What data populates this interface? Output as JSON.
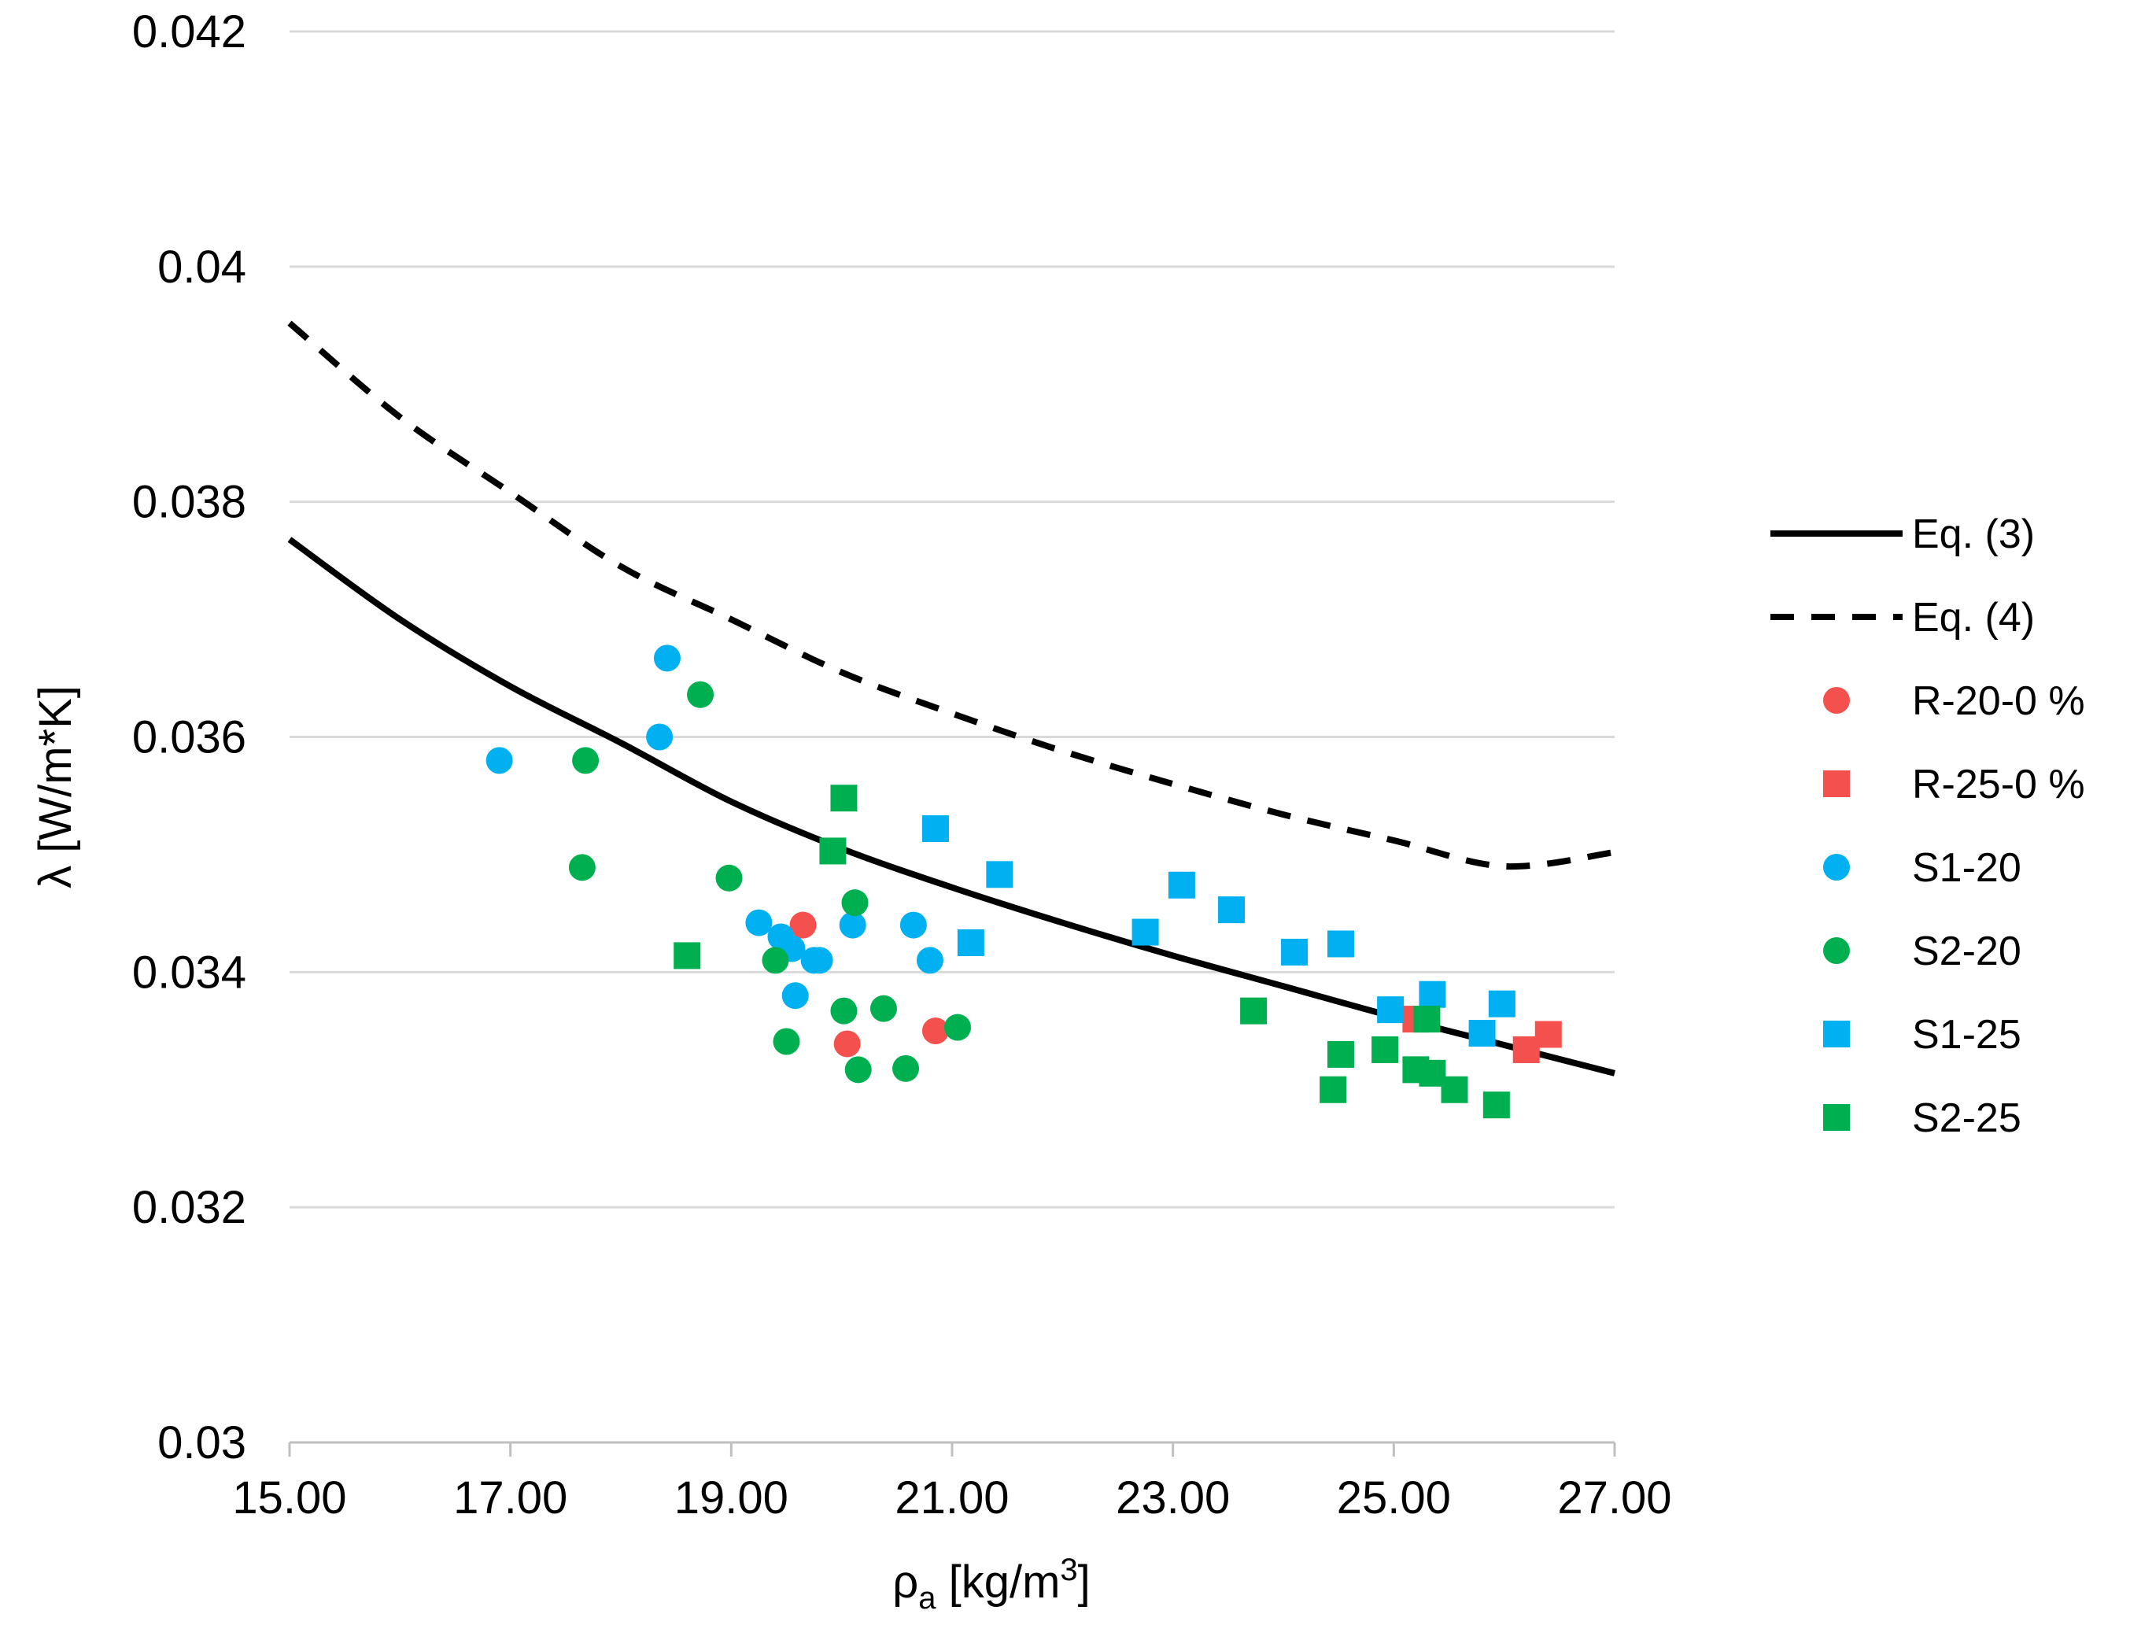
{
  "chart_data": {
    "type": "scatter",
    "title": "",
    "xlabel": {
      "main": "ρ",
      "sub": "a",
      "unit_pre": " [kg/m",
      "sup": "3",
      "unit_post": "]"
    },
    "ylabel": "λ [W/m*K]",
    "xlim": [
      15,
      27
    ],
    "ylim": [
      0.03,
      0.042
    ],
    "x_ticks": [
      15,
      17,
      19,
      21,
      23,
      25,
      27
    ],
    "x_tick_labels": [
      "15.00",
      "17.00",
      "19.00",
      "21.00",
      "23.00",
      "25.00",
      "27.00"
    ],
    "y_ticks": [
      0.03,
      0.032,
      0.034,
      0.036,
      0.038,
      0.04,
      0.042
    ],
    "y_tick_labels": [
      "0.03",
      "0.032",
      "0.034",
      "0.036",
      "0.038",
      "0.04",
      "0.042"
    ],
    "grid": "horizontal",
    "legend_position": "right",
    "lines": [
      {
        "name": "Eq. (3)",
        "style": "solid",
        "color": "#000000",
        "x": [
          15,
          16,
          17,
          18,
          19,
          20,
          21,
          22,
          23,
          24,
          25,
          26,
          27
        ],
        "y": [
          0.03768,
          0.037,
          0.03643,
          0.03595,
          0.03545,
          0.03505,
          0.03472,
          0.03442,
          0.03414,
          0.03388,
          0.03362,
          0.03338,
          0.03314
        ]
      },
      {
        "name": "Eq. (4)",
        "style": "dashed",
        "color": "#000000",
        "x": [
          15,
          16,
          17,
          18,
          19,
          20,
          21,
          22,
          23,
          24,
          25,
          26,
          27
        ],
        "y": [
          0.03952,
          0.03872,
          0.03808,
          0.03745,
          0.037,
          0.03655,
          0.0362,
          0.03588,
          0.0356,
          0.03534,
          0.03512,
          0.0349,
          0.03502
        ]
      }
    ],
    "series": [
      {
        "name": "R-20-0 %",
        "marker": "circle",
        "color": "#F4504E",
        "points": [
          [
            19.65,
            0.0344
          ],
          [
            20.05,
            0.03339
          ],
          [
            20.85,
            0.0335
          ]
        ]
      },
      {
        "name": "R-25-0 %",
        "marker": "square",
        "color": "#F4504E",
        "points": [
          [
            25.2,
            0.0336
          ],
          [
            26.2,
            0.03334
          ],
          [
            26.4,
            0.03347
          ]
        ]
      },
      {
        "name": "S1-20",
        "marker": "circle",
        "color": "#00B0F0",
        "points": [
          [
            16.9,
            0.0358
          ],
          [
            18.35,
            0.036
          ],
          [
            18.42,
            0.03667
          ],
          [
            19.25,
            0.03442
          ],
          [
            19.45,
            0.0343
          ],
          [
            19.55,
            0.0342
          ],
          [
            19.58,
            0.0338
          ],
          [
            19.75,
            0.0341
          ],
          [
            19.8,
            0.0341
          ],
          [
            20.1,
            0.0344
          ],
          [
            20.65,
            0.0344
          ],
          [
            20.8,
            0.0341
          ]
        ]
      },
      {
        "name": "S2-20",
        "marker": "circle",
        "color": "#00B050",
        "points": [
          [
            17.65,
            0.03489
          ],
          [
            17.68,
            0.0358
          ],
          [
            18.72,
            0.03636
          ],
          [
            18.98,
            0.0348
          ],
          [
            19.4,
            0.0341
          ],
          [
            19.5,
            0.03341
          ],
          [
            20.02,
            0.03367
          ],
          [
            20.12,
            0.03459
          ],
          [
            20.15,
            0.03317
          ],
          [
            20.38,
            0.03369
          ],
          [
            20.58,
            0.03318
          ],
          [
            21.05,
            0.03353
          ]
        ]
      },
      {
        "name": "S1-25",
        "marker": "square",
        "color": "#00B0F0",
        "points": [
          [
            20.85,
            0.03522
          ],
          [
            21.17,
            0.03425
          ],
          [
            21.43,
            0.03483
          ],
          [
            22.75,
            0.03434
          ],
          [
            23.08,
            0.03474
          ],
          [
            23.53,
            0.03453
          ],
          [
            24.1,
            0.03417
          ],
          [
            24.52,
            0.03424
          ],
          [
            24.97,
            0.03368
          ],
          [
            25.35,
            0.03381
          ],
          [
            25.8,
            0.03348
          ],
          [
            25.98,
            0.03373
          ]
        ]
      },
      {
        "name": "S2-25",
        "marker": "square",
        "color": "#00B050",
        "points": [
          [
            18.6,
            0.03414
          ],
          [
            19.92,
            0.03503
          ],
          [
            20.02,
            0.03548
          ],
          [
            23.73,
            0.03367
          ],
          [
            24.45,
            0.033
          ],
          [
            24.52,
            0.0333
          ],
          [
            24.92,
            0.03334
          ],
          [
            25.2,
            0.03317
          ],
          [
            25.3,
            0.0336
          ],
          [
            25.35,
            0.03314
          ],
          [
            25.55,
            0.033
          ],
          [
            25.93,
            0.03287
          ]
        ]
      }
    ]
  }
}
